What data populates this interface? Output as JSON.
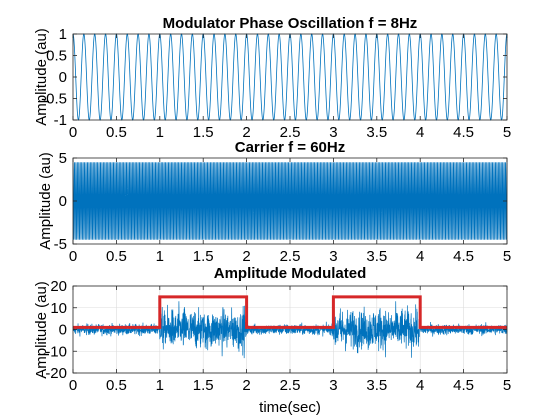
{
  "figure": {
    "background": "#ffffff",
    "series_color": "#0072BD",
    "envelope_color": "#D62728"
  },
  "chart_data": [
    {
      "type": "line",
      "title": "Modulator Phase Oscillation f = 8Hz",
      "xlabel": "",
      "ylabel": "Amplitude (au)",
      "xlim": [
        0,
        5
      ],
      "ylim": [
        -1,
        1
      ],
      "xticks": [
        "0",
        "0.5",
        "1",
        "1.5",
        "2",
        "2.5",
        "3",
        "3.5",
        "4",
        "4.5",
        "5"
      ],
      "yticks": [
        "-1",
        "-0.5",
        "0",
        "0.5",
        "1"
      ],
      "grid": false,
      "series": [
        {
          "kind": "sinusoid",
          "frequency_hz": 8,
          "amplitude": 1,
          "color": "#0072BD"
        }
      ]
    },
    {
      "type": "line",
      "title": "Carrier f = 60Hz",
      "xlabel": "",
      "ylabel": "Amplitude (au)",
      "xlim": [
        0,
        5
      ],
      "ylim": [
        -5,
        5
      ],
      "xticks": [
        "0",
        "0.5",
        "1",
        "1.5",
        "2",
        "2.5",
        "3",
        "3.5",
        "4",
        "4.5",
        "5"
      ],
      "yticks": [
        "-5",
        "0",
        "5"
      ],
      "grid": false,
      "series": [
        {
          "kind": "sinusoid",
          "frequency_hz": 60,
          "amplitude": 4.5,
          "color": "#0072BD"
        }
      ]
    },
    {
      "type": "line",
      "title": "Amplitude Modulated",
      "xlabel": "time(sec)",
      "ylabel": "Amplitude (au)",
      "xlim": [
        0,
        5
      ],
      "ylim": [
        -20,
        20
      ],
      "xticks": [
        "0",
        "0.5",
        "1",
        "1.5",
        "2",
        "2.5",
        "3",
        "3.5",
        "4",
        "4.5",
        "5"
      ],
      "yticks": [
        "-20",
        "-10",
        "0",
        "10",
        "20"
      ],
      "grid": true,
      "series": [
        {
          "kind": "noisy_signal",
          "baseline_peak": 5,
          "burst_peak": 13,
          "color": "#0072BD"
        },
        {
          "kind": "step",
          "color": "#D62728",
          "x": [
            0,
            1,
            1,
            2,
            2,
            3,
            3,
            4,
            4,
            5
          ],
          "y": [
            1,
            1,
            15,
            15,
            1,
            1,
            15,
            15,
            1,
            1
          ]
        }
      ]
    }
  ]
}
